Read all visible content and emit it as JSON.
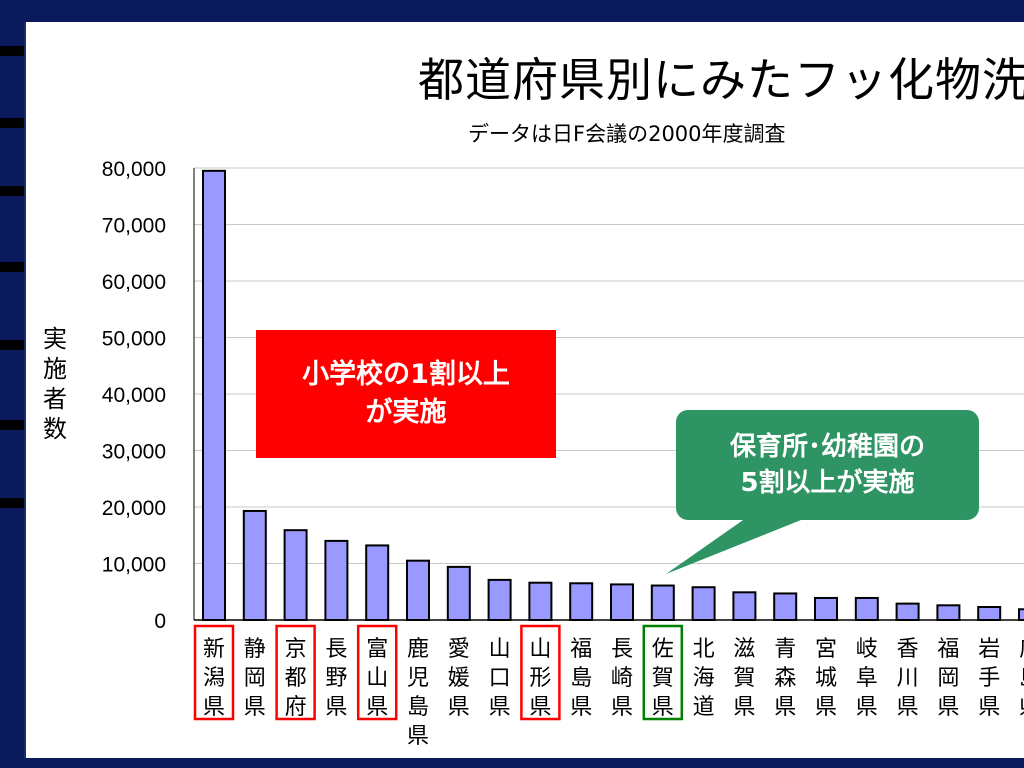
{
  "title": "都道府県別にみたフッ化物洗",
  "subtitle": "データは日F会議の2000年度調査",
  "ylabel": "実施者数",
  "callouts": {
    "red_line1": "小学校の1割以上",
    "red_line2": "が実施",
    "green_line1": "保育所･幼稚園の",
    "green_line2": "5割以上が実施"
  },
  "colors": {
    "bar": "#9999ff",
    "highlight_red": "#ff0000",
    "highlight_green": "#008000",
    "callout_green": "#2e9464"
  },
  "chart_data": {
    "type": "bar",
    "ylim": [
      0,
      80000
    ],
    "yticks": [
      "0",
      "10,000",
      "20,000",
      "30,000",
      "40,000",
      "50,000",
      "60,000",
      "70,000",
      "80,000"
    ],
    "grid": true,
    "categories": [
      "新潟県",
      "静岡県",
      "京都府",
      "長野県",
      "富山県",
      "鹿児島県",
      "愛媛県",
      "山口県",
      "山形県",
      "福島県",
      "長崎県",
      "佐賀県",
      "北海道",
      "滋賀県",
      "青森県",
      "宮城県",
      "岐阜県",
      "香川県",
      "福岡県",
      "岩手県",
      "広島県"
    ],
    "values": [
      79500,
      19300,
      15900,
      14000,
      13200,
      10500,
      9400,
      7100,
      6600,
      6500,
      6300,
      6100,
      5800,
      4900,
      4700,
      3900,
      3900,
      2900,
      2600,
      2300,
      1900
    ],
    "highlight_red": [
      "新潟県",
      "京都府",
      "富山県",
      "山形県"
    ],
    "highlight_green": [
      "佐賀県"
    ]
  }
}
